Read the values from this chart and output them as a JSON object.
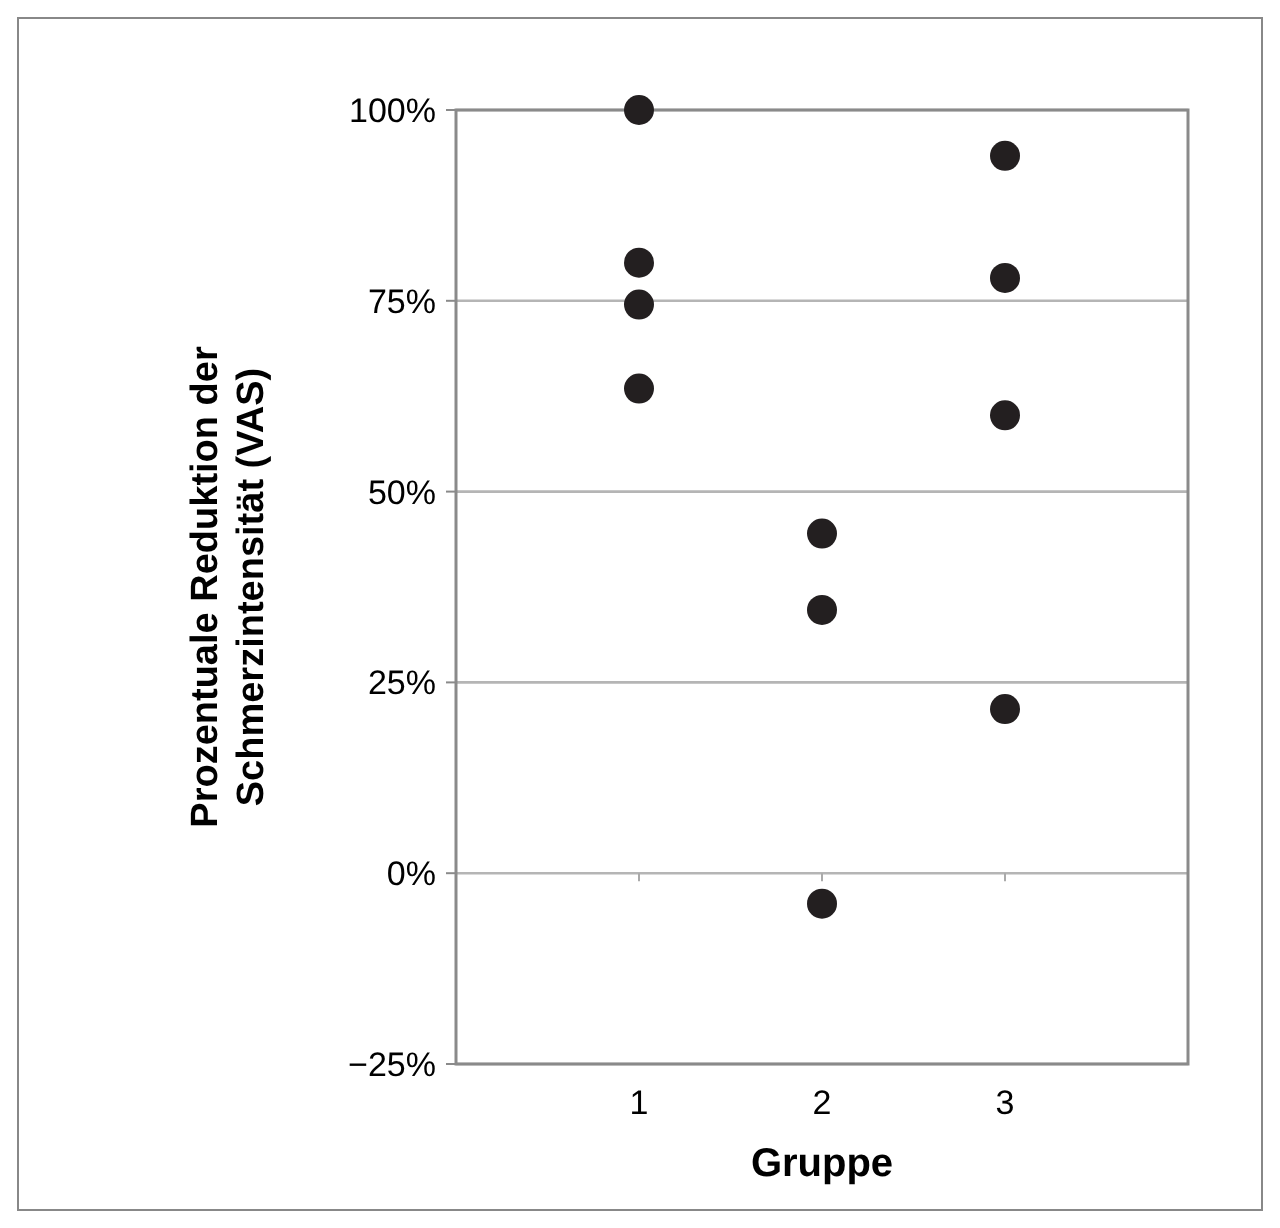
{
  "chart_data": {
    "type": "scatter",
    "xlabel": "Gruppe",
    "ylabel": "Prozentuale Reduktion der\nSchmerzintensität (VAS)",
    "xlim": [
      0,
      4
    ],
    "xticks": [
      1,
      2,
      3
    ],
    "ylim": [
      -25,
      100
    ],
    "yticks": [
      {
        "value": -25,
        "label": "−25%"
      },
      {
        "value": 0,
        "label": "0%"
      },
      {
        "value": 25,
        "label": "25%"
      },
      {
        "value": 50,
        "label": "50%"
      },
      {
        "value": 75,
        "label": "75%"
      },
      {
        "value": 100,
        "label": "100%"
      }
    ],
    "grid": "y",
    "marker": "circle",
    "series": [
      {
        "color": "#231f20",
        "x": [
          1,
          1,
          1,
          1,
          2,
          2,
          2,
          3,
          3,
          3,
          3
        ],
        "values": [
          100,
          80,
          74.5,
          63.5,
          44.5,
          34.5,
          -4,
          94,
          78,
          60,
          21.5
        ]
      }
    ]
  }
}
